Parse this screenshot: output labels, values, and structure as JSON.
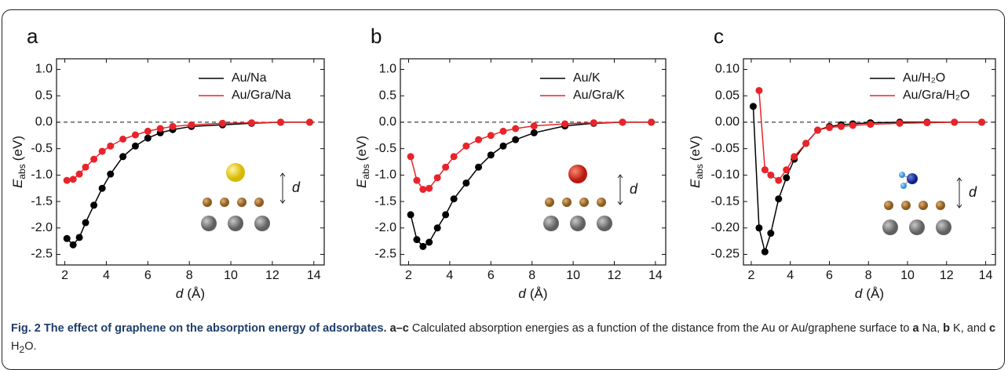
{
  "chart_data": [
    {
      "type": "line",
      "panel": "a",
      "xlabel": {
        "symbol": "d",
        "unit": "(Å)"
      },
      "ylabel": {
        "symbol": "E",
        "subscript": "abs",
        "unit": "(eV)"
      },
      "x": [
        2.1,
        2.4,
        2.7,
        3.0,
        3.4,
        3.8,
        4.2,
        4.8,
        5.4,
        6.0,
        6.6,
        7.2,
        8.1,
        9.6,
        11.0,
        12.4,
        13.8
      ],
      "series": [
        {
          "name": "Au/Na",
          "color": "#000000",
          "values": [
            -2.2,
            -2.32,
            -2.18,
            -1.9,
            -1.57,
            -1.25,
            -0.98,
            -0.65,
            -0.45,
            -0.3,
            -0.2,
            -0.14,
            -0.08,
            -0.05,
            -0.02,
            0,
            0
          ]
        },
        {
          "name": "Au/Gra/Na",
          "color": "#e8242a",
          "values": [
            -1.1,
            -1.08,
            -0.98,
            -0.85,
            -0.7,
            -0.55,
            -0.45,
            -0.32,
            -0.24,
            -0.17,
            -0.12,
            -0.08,
            -0.05,
            -0.02,
            -0.01,
            0,
            0
          ]
        }
      ],
      "xlim": [
        1.6,
        14.5
      ],
      "ylim": [
        -2.7,
        1.2
      ],
      "xticks": [
        2,
        4,
        6,
        8,
        10,
        12,
        14
      ],
      "yticks": [
        {
          "value": 1.0,
          "label": "1.0"
        },
        {
          "value": 0.5,
          "label": "0.5"
        },
        {
          "value": 0.0,
          "label": "0.0"
        },
        {
          "value": -0.5,
          "label": "-0.5"
        },
        {
          "value": -1.0,
          "label": "-1.0"
        },
        {
          "value": -1.5,
          "label": "-1.5"
        },
        {
          "value": -2.0,
          "label": "-2.0"
        },
        {
          "value": -2.5,
          "label": "-2.5"
        }
      ],
      "zero_line": true,
      "legend": "upper right",
      "inset_label": "d"
    },
    {
      "type": "line",
      "panel": "b",
      "xlabel": {
        "symbol": "d",
        "unit": "(Å)"
      },
      "ylabel": {
        "symbol": "E",
        "subscript": "abs",
        "unit": "(eV)"
      },
      "x": [
        2.1,
        2.4,
        2.7,
        3.0,
        3.4,
        3.8,
        4.2,
        4.8,
        5.4,
        6.0,
        6.6,
        7.2,
        8.1,
        9.6,
        11.0,
        12.4,
        13.8
      ],
      "series": [
        {
          "name": "Au/K",
          "color": "#000000",
          "values": [
            -1.75,
            -2.22,
            -2.35,
            -2.27,
            -2.0,
            -1.75,
            -1.45,
            -1.15,
            -0.85,
            -0.62,
            -0.45,
            -0.33,
            -0.2,
            -0.07,
            -0.02,
            0,
            0
          ]
        },
        {
          "name": "Au/Gra/K",
          "color": "#e8242a",
          "values": [
            -0.65,
            -1.1,
            -1.27,
            -1.25,
            -1.05,
            -0.85,
            -0.65,
            -0.45,
            -0.33,
            -0.25,
            -0.17,
            -0.12,
            -0.07,
            -0.03,
            -0.01,
            0,
            0
          ]
        }
      ],
      "xlim": [
        1.6,
        14.5
      ],
      "ylim": [
        -2.7,
        1.2
      ],
      "xticks": [
        2,
        4,
        6,
        8,
        10,
        12,
        14
      ],
      "yticks": [
        {
          "value": 1.0,
          "label": "1.0"
        },
        {
          "value": 0.5,
          "label": "0.5"
        },
        {
          "value": 0.0,
          "label": "0.0"
        },
        {
          "value": -0.5,
          "label": "-0.5"
        },
        {
          "value": -1.0,
          "label": "-1.0"
        },
        {
          "value": -1.5,
          "label": "-1.5"
        },
        {
          "value": -2.0,
          "label": "-2.0"
        },
        {
          "value": -2.5,
          "label": "-2.5"
        }
      ],
      "zero_line": true,
      "legend": "upper right",
      "inset_label": "d"
    },
    {
      "type": "line",
      "panel": "c",
      "xlabel": {
        "symbol": "d",
        "unit": "(Å)"
      },
      "ylabel": {
        "symbol": "E",
        "subscript": "abs",
        "unit": "(eV)"
      },
      "x": [
        2.1,
        2.4,
        2.7,
        3.0,
        3.4,
        3.8,
        4.2,
        4.8,
        5.4,
        6.0,
        6.6,
        7.2,
        8.1,
        9.6,
        11.0,
        12.4,
        13.8
      ],
      "series": [
        {
          "name": "Au/H₂O",
          "color": "#000000",
          "values": [
            0.03,
            -0.2,
            -0.245,
            -0.21,
            -0.145,
            -0.105,
            -0.07,
            -0.04,
            -0.015,
            -0.008,
            -0.005,
            -0.003,
            -0.001,
            0,
            0,
            0,
            0
          ]
        },
        {
          "name": "Au/Gra/H₂O",
          "color": "#e8242a",
          "values": [
            null,
            0.06,
            -0.09,
            -0.1,
            -0.11,
            -0.09,
            -0.065,
            -0.04,
            -0.015,
            -0.01,
            -0.008,
            -0.006,
            -0.004,
            -0.002,
            -0.001,
            0,
            0
          ]
        }
      ],
      "xlim": [
        1.6,
        14.5
      ],
      "ylim": [
        -0.27,
        0.12
      ],
      "xticks": [
        2,
        4,
        6,
        8,
        10,
        12,
        14
      ],
      "yticks": [
        {
          "value": 0.1,
          "label": "0.10"
        },
        {
          "value": 0.05,
          "label": "0.05"
        },
        {
          "value": 0.0,
          "label": "0.00"
        },
        {
          "value": -0.05,
          "label": "-0.05"
        },
        {
          "value": -0.1,
          "label": "-0.10"
        },
        {
          "value": -0.15,
          "label": "-0.15"
        },
        {
          "value": -0.2,
          "label": "-0.20"
        },
        {
          "value": -0.25,
          "label": "-0.25"
        }
      ],
      "zero_line": true,
      "legend": "upper right",
      "inset_label": "d"
    }
  ],
  "caption": [
    {
      "text": "Fig. 2 The effect of graphene on the absorption energy of adsorbates.",
      "style": "bold"
    },
    {
      "text": " a–c",
      "style": "bold"
    },
    {
      "text": " Calculated absorption energies as a function of the distance from the Au or Au/graphene surface to ",
      "style": "normal"
    },
    {
      "text": "a",
      "style": "bold"
    },
    {
      "text": " Na, ",
      "style": "normal"
    },
    {
      "text": "b",
      "style": "bold"
    },
    {
      "text": " K, and ",
      "style": "normal"
    },
    {
      "text": "c",
      "style": "bold"
    },
    {
      "text": " H",
      "style": "normal"
    },
    {
      "text": "2",
      "style": "sub"
    },
    {
      "text": "O.",
      "style": "normal"
    }
  ]
}
